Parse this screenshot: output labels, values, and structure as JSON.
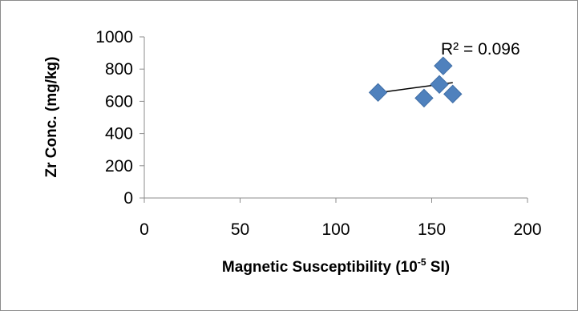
{
  "chart_data": {
    "type": "scatter",
    "xlabel": "Magnetic Susceptibility (10",
    "xlabel_superscript": "-5",
    "xlabel_suffix": " SI)",
    "ylabel": "Zr Conc. (mg/kg)",
    "xlim": [
      0,
      200
    ],
    "ylim": [
      0,
      1000
    ],
    "x_ticks": [
      0,
      50,
      100,
      150,
      200
    ],
    "y_ticks": [
      0,
      200,
      400,
      600,
      800,
      1000
    ],
    "grid": false,
    "legend": "none",
    "marker": "diamond",
    "marker_color": "#4f81bd",
    "points": [
      {
        "x": 122,
        "y": 655
      },
      {
        "x": 146,
        "y": 620
      },
      {
        "x": 154,
        "y": 705
      },
      {
        "x": 156,
        "y": 820
      },
      {
        "x": 161,
        "y": 645
      }
    ],
    "trendline": {
      "type": "linear",
      "x_start": 122,
      "x_end": 161,
      "y_start": 653,
      "y_end": 716,
      "color": "#000000"
    },
    "annotation": "R² = 0.096"
  }
}
